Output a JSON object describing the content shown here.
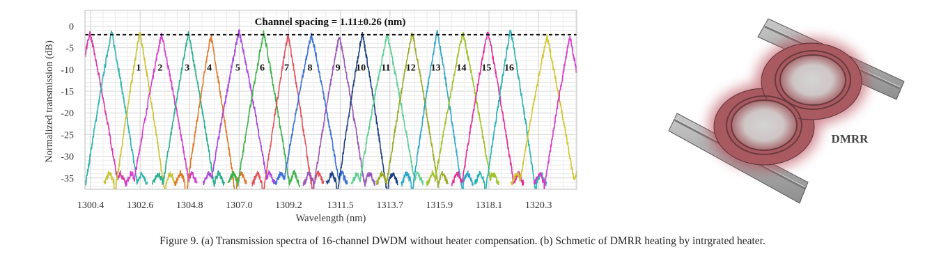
{
  "chart_data": {
    "type": "line",
    "panel": "a",
    "title": "",
    "annotation": "Channel spacing = 1.11±0.26 (nm)",
    "xlabel": "Wavelength (nm)",
    "ylabel": "Normalized transmission (dB)",
    "xlim": [
      1300.15,
      1322.0
    ],
    "ylim": [
      -37.6,
      3.6
    ],
    "xticks": [
      "1300.4",
      "1302.6",
      "1304.8",
      "1307.0",
      "1309.2",
      "1311.5",
      "1313.7",
      "1315.9",
      "1318.1",
      "1320.3"
    ],
    "yticks": [
      0,
      -5,
      -10,
      -15,
      -20,
      -25,
      -30,
      -35
    ],
    "grid": true,
    "reference_line_db": -2,
    "label_level_db": -9.5,
    "peaks": [
      {
        "center_nm": 1300.37,
        "peak_db": -1.5,
        "color": "#d63ba6",
        "channel": ""
      },
      {
        "center_nm": 1301.33,
        "peak_db": -1.3,
        "color": "#2fb3ad",
        "channel": ""
      },
      {
        "center_nm": 1302.59,
        "peak_db": -1.5,
        "color": "#c9c232",
        "channel": "1"
      },
      {
        "center_nm": 1303.55,
        "peak_db": -2.0,
        "color": "#d43dcc",
        "channel": "2"
      },
      {
        "center_nm": 1304.75,
        "peak_db": -1.8,
        "color": "#29b08e",
        "channel": "3"
      },
      {
        "center_nm": 1305.74,
        "peak_db": -2.2,
        "color": "#e07a2a",
        "channel": "4"
      },
      {
        "center_nm": 1307.0,
        "peak_db": -1.2,
        "color": "#a646e0",
        "channel": "5"
      },
      {
        "center_nm": 1308.09,
        "peak_db": -1.5,
        "color": "#3fb04a",
        "channel": "6"
      },
      {
        "center_nm": 1309.17,
        "peak_db": -2.0,
        "color": "#e0505a",
        "channel": "7"
      },
      {
        "center_nm": 1310.21,
        "peak_db": -1.8,
        "color": "#3b72d8",
        "channel": "8"
      },
      {
        "center_nm": 1311.45,
        "peak_db": -2.2,
        "color": "#9a57b8",
        "channel": "9"
      },
      {
        "center_nm": 1312.47,
        "peak_db": -1.5,
        "color": "#1b3f80",
        "channel": "10"
      },
      {
        "center_nm": 1313.58,
        "peak_db": -2.0,
        "color": "#5fcf94",
        "channel": "11"
      },
      {
        "center_nm": 1314.69,
        "peak_db": -1.5,
        "color": "#9aaa28",
        "channel": "12"
      },
      {
        "center_nm": 1315.8,
        "peak_db": -1.0,
        "color": "#2ba6c8",
        "channel": "13"
      },
      {
        "center_nm": 1316.94,
        "peak_db": -1.5,
        "color": "#a0c22a",
        "channel": "14"
      },
      {
        "center_nm": 1318.05,
        "peak_db": -1.0,
        "color": "#e0309a",
        "channel": "15"
      },
      {
        "center_nm": 1319.06,
        "peak_db": -0.8,
        "color": "#24b2b0",
        "channel": "16"
      },
      {
        "center_nm": 1320.68,
        "peak_db": -2.5,
        "color": "#d2c630",
        "channel": ""
      },
      {
        "center_nm": 1321.7,
        "peak_db": -2.5,
        "color": "#d93acb",
        "channel": ""
      }
    ]
  },
  "schematic": {
    "panel": "b",
    "label": "DMRR",
    "heater_color": "#a85a60",
    "waveguide_color": "#a9a9a9"
  },
  "caption": "Figure 9. (a) Transmission spectra of 16-channel DWDM without heater compensation. (b) Schmetic of DMRR heating by intrgrated heater."
}
